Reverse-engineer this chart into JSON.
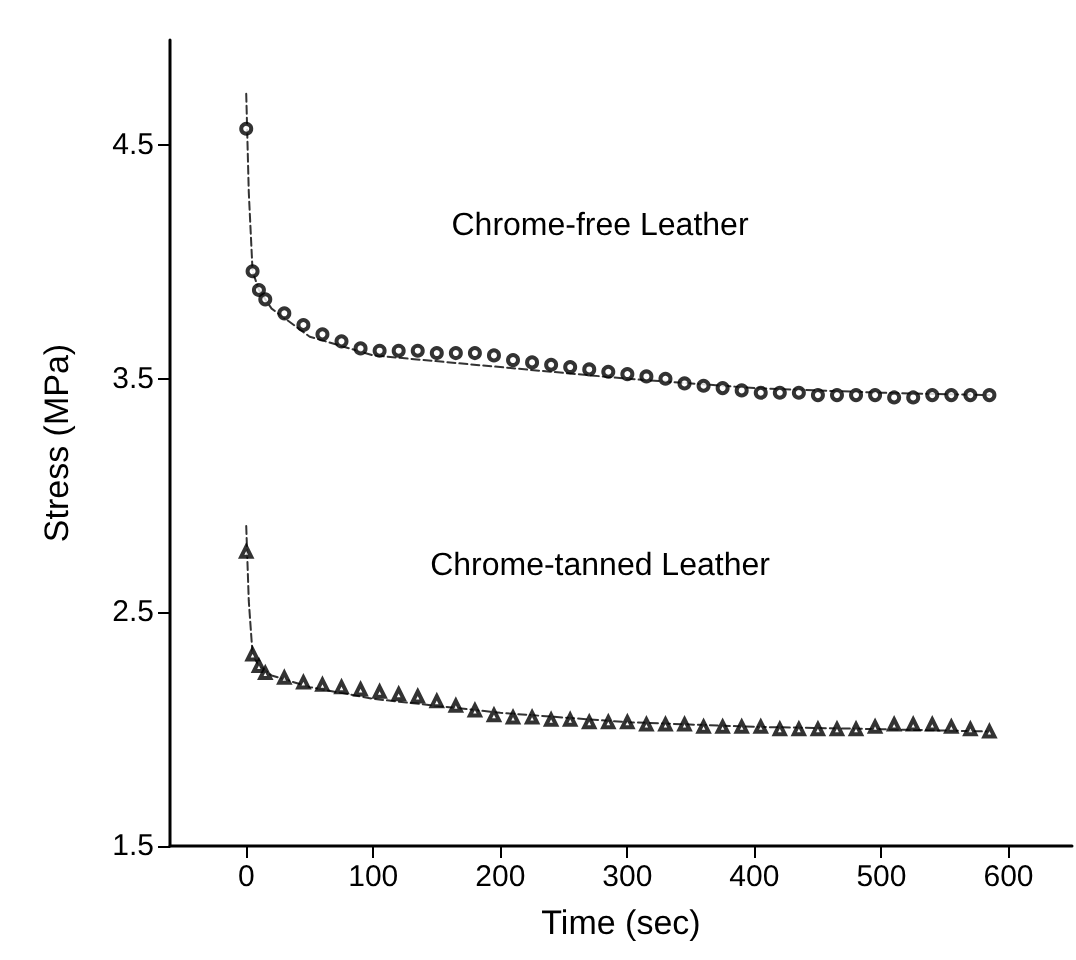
{
  "chart_data": {
    "type": "scatter",
    "xlabel": "Time (sec)",
    "ylabel": "Stress (MPa)",
    "xlim": [
      -60,
      650
    ],
    "ylim": [
      1.5,
      4.95
    ],
    "xticks": [
      0,
      100,
      200,
      300,
      400,
      500,
      600
    ],
    "yticks": [
      1.5,
      2.5,
      3.5,
      4.5
    ],
    "grid": false,
    "series": [
      {
        "type": "line",
        "color": "#333333",
        "line_style": "dashed",
        "marker": "none",
        "x": [
          0,
          2,
          5,
          10,
          20,
          50,
          100,
          200,
          300,
          400,
          500,
          585
        ],
        "values": [
          4.72,
          4.3,
          3.96,
          3.88,
          3.8,
          3.68,
          3.6,
          3.55,
          3.5,
          3.46,
          3.44,
          3.43
        ]
      },
      {
        "type": "line",
        "color": "#333333",
        "line_style": "dashed",
        "marker": "none",
        "x": [
          0,
          2,
          5,
          10,
          20,
          50,
          100,
          200,
          300,
          400,
          500,
          585
        ],
        "values": [
          2.87,
          2.55,
          2.32,
          2.27,
          2.23,
          2.18,
          2.13,
          2.07,
          2.03,
          2.01,
          2.0,
          1.99
        ]
      },
      {
        "color": "#000000",
        "marker": "circle",
        "x": [
          0,
          5,
          10,
          15,
          30,
          45,
          60,
          75,
          90,
          105,
          120,
          135,
          150,
          165,
          180,
          195,
          210,
          225,
          240,
          255,
          270,
          285,
          300,
          315,
          330,
          345,
          360,
          375,
          390,
          405,
          420,
          435,
          450,
          465,
          480,
          495,
          510,
          525,
          540,
          555,
          570,
          585
        ],
        "values": [
          4.57,
          3.96,
          3.88,
          3.84,
          3.78,
          3.73,
          3.69,
          3.66,
          3.63,
          3.62,
          3.62,
          3.62,
          3.61,
          3.61,
          3.61,
          3.6,
          3.58,
          3.57,
          3.56,
          3.55,
          3.54,
          3.53,
          3.52,
          3.51,
          3.5,
          3.48,
          3.47,
          3.46,
          3.45,
          3.44,
          3.44,
          3.44,
          3.43,
          3.43,
          3.43,
          3.43,
          3.42,
          3.42,
          3.43,
          3.43,
          3.43,
          3.43
        ]
      },
      {
        "color": "#000000",
        "marker": "triangle",
        "x": [
          0,
          5,
          10,
          15,
          30,
          45,
          60,
          75,
          90,
          105,
          120,
          135,
          150,
          165,
          180,
          195,
          210,
          225,
          240,
          255,
          270,
          285,
          300,
          315,
          330,
          345,
          360,
          375,
          390,
          405,
          420,
          435,
          450,
          465,
          480,
          495,
          510,
          525,
          540,
          555,
          570,
          585
        ],
        "values": [
          2.76,
          2.32,
          2.27,
          2.24,
          2.22,
          2.2,
          2.19,
          2.18,
          2.17,
          2.16,
          2.15,
          2.14,
          2.12,
          2.1,
          2.08,
          2.06,
          2.05,
          2.05,
          2.04,
          2.04,
          2.03,
          2.03,
          2.03,
          2.02,
          2.02,
          2.02,
          2.01,
          2.01,
          2.01,
          2.01,
          2.0,
          2.0,
          2.0,
          2.0,
          2.0,
          2.01,
          2.02,
          2.02,
          2.02,
          2.01,
          2.0,
          1.99
        ]
      }
    ],
    "annotations": [
      "Chrome-free Leather",
      "Chrome-tanned Leather"
    ]
  }
}
